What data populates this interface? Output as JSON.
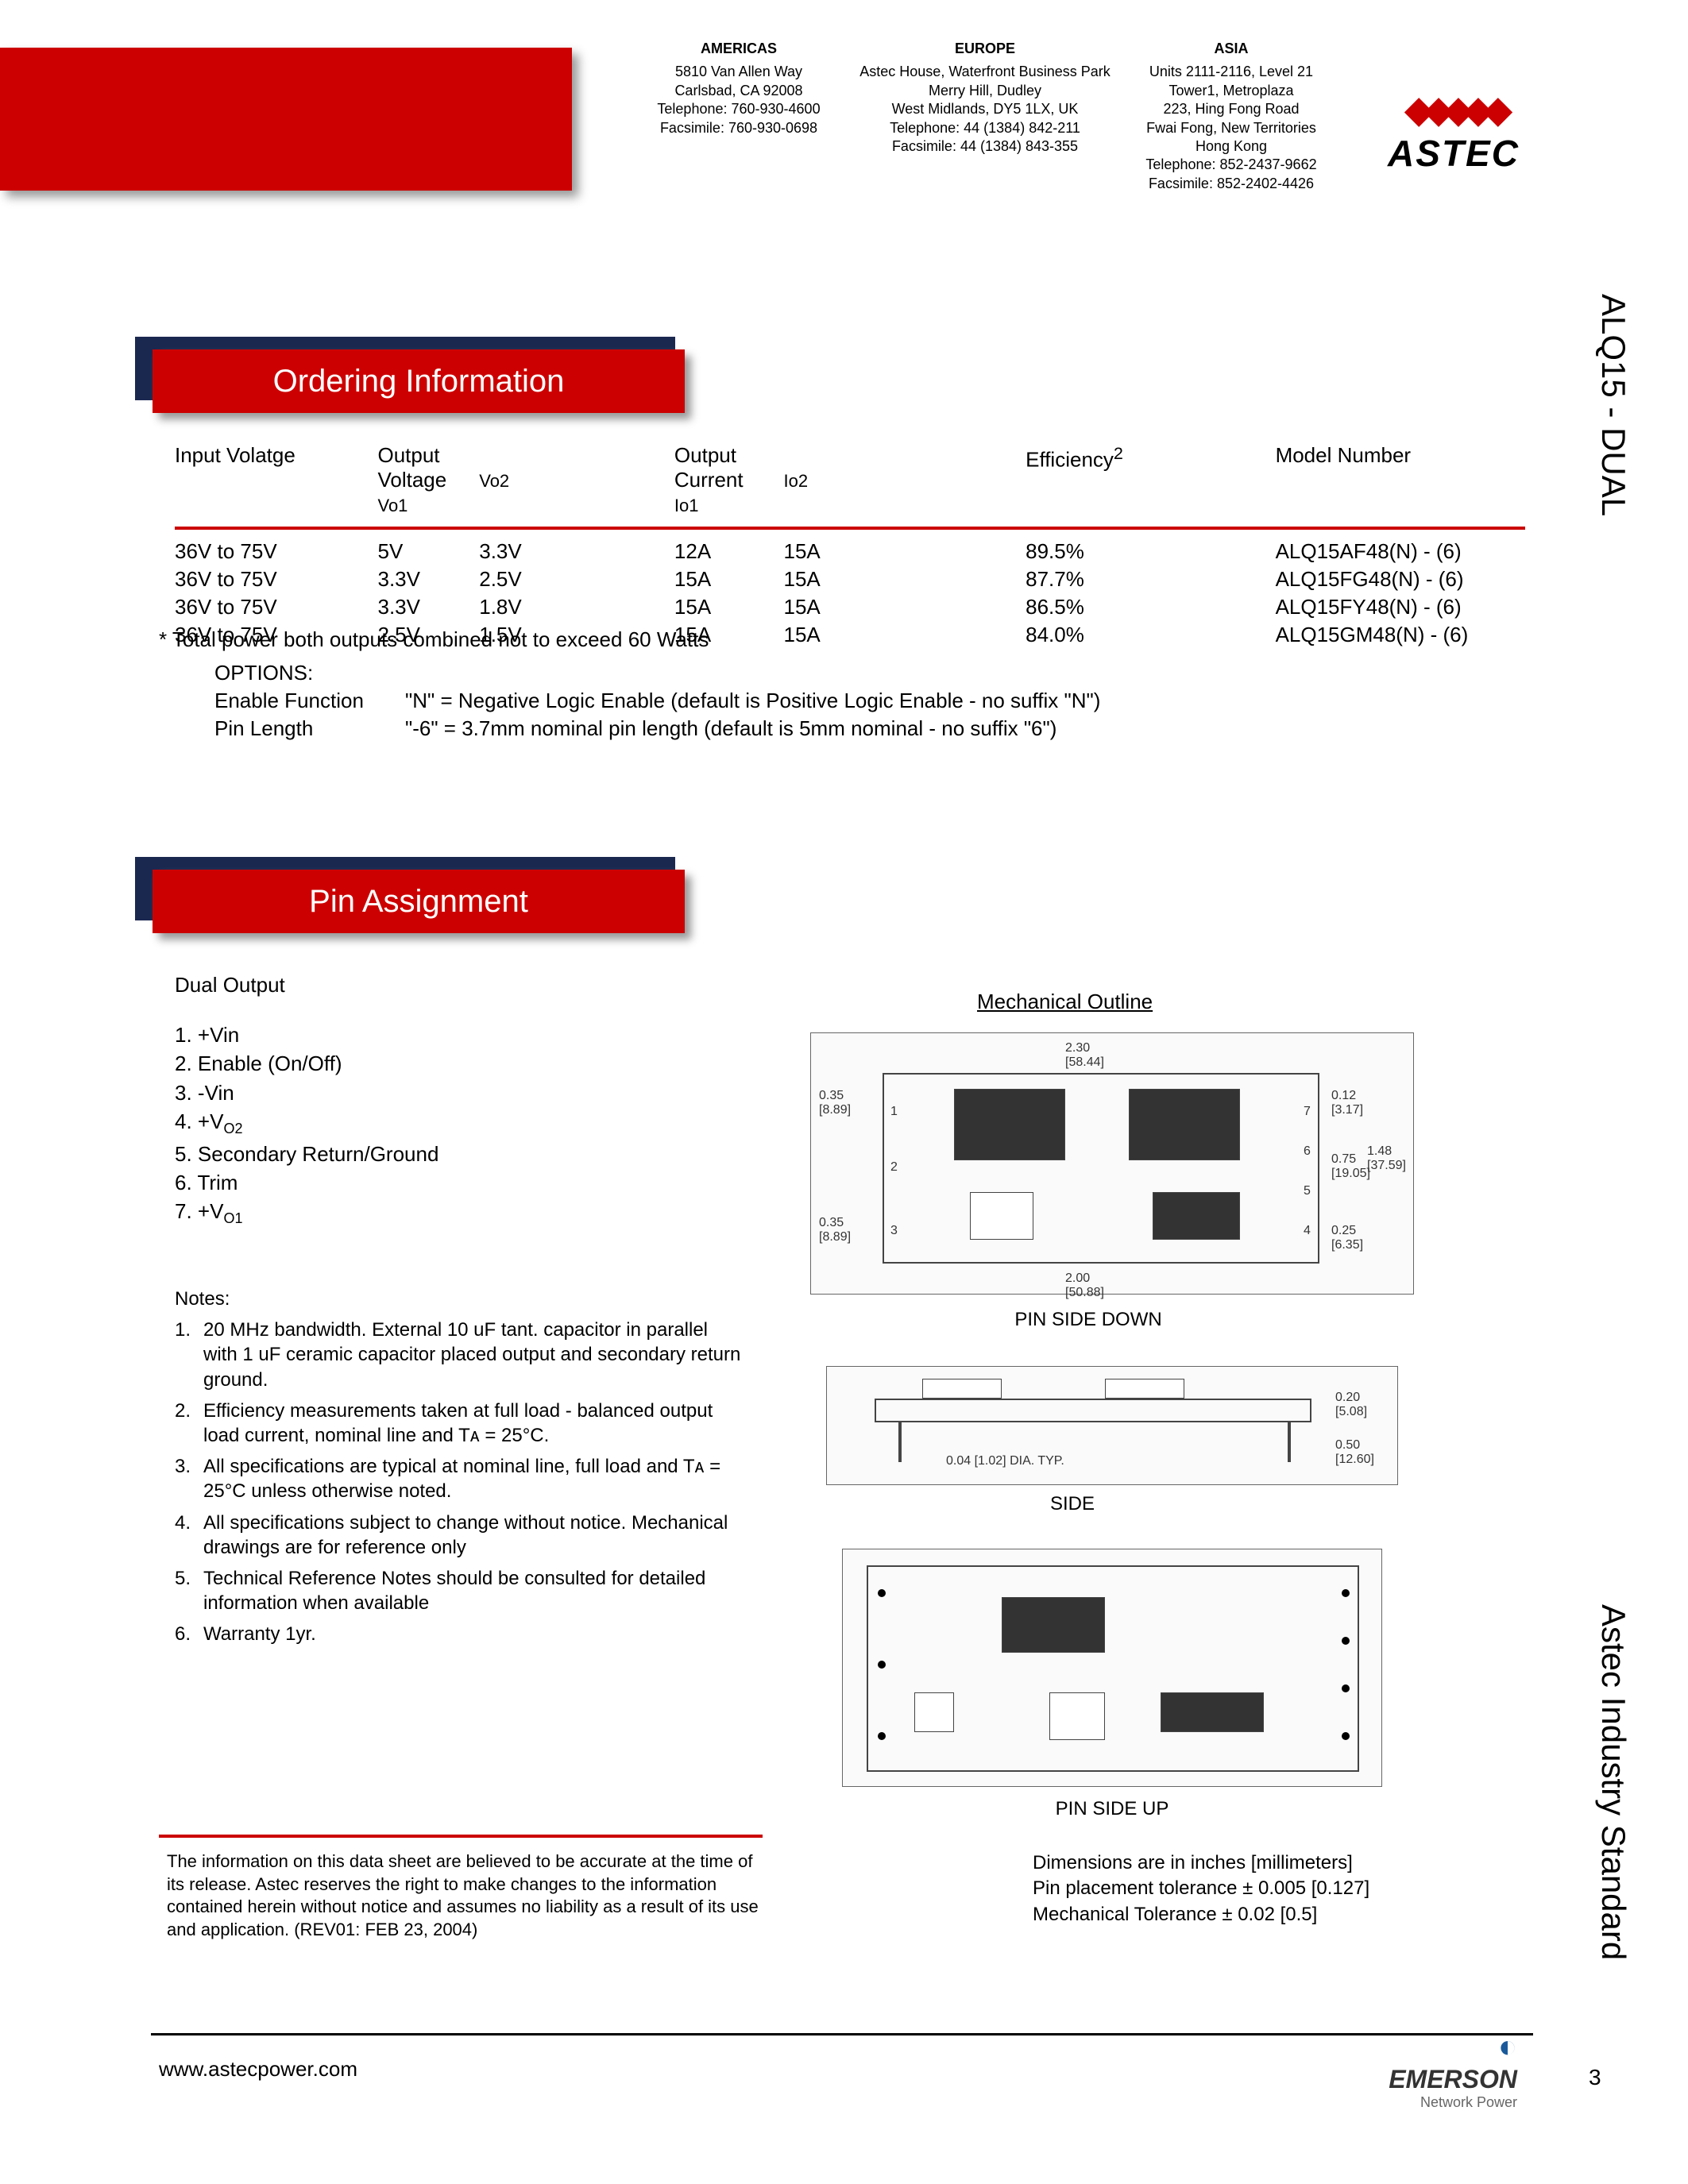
{
  "contacts": {
    "americas": {
      "title": "AMERICAS",
      "l1": "5810 Van Allen Way",
      "l2": "Carlsbad, CA 92008",
      "l3": "Telephone: 760-930-4600",
      "l4": "Facsimile: 760-930-0698"
    },
    "europe": {
      "title": "EUROPE",
      "l1": "Astec House, Waterfront Business Park",
      "l2": "Merry Hill, Dudley",
      "l3": "West Midlands, DY5 1LX, UK",
      "l4": "Telephone: 44 (1384) 842-211",
      "l5": "Facsimile: 44 (1384) 843-355"
    },
    "asia": {
      "title": "ASIA",
      "l1": "Units 2111-2116, Level 21",
      "l2": "Tower1, Metroplaza",
      "l3": "223, Hing Fong Road",
      "l4": "Fwai Fong, New Territories",
      "l5": "Hong Kong",
      "l6": "Telephone: 852-2437-9662",
      "l7": "Facsimile: 852-2402-4426"
    }
  },
  "brand": {
    "astec": "ASTEC",
    "emerson": "EMERSON",
    "emerson_sub": "Network Power"
  },
  "side": {
    "top": "ALQ15 - DUAL",
    "bottom": "Astec Industry Standard"
  },
  "sections": {
    "ordering": "Ordering Information",
    "pin": "Pin Assignment"
  },
  "table": {
    "headers": {
      "input": "Input Volatge",
      "output_voltage": "Output Voltage",
      "vo1": "Vo1",
      "vo2": "Vo2",
      "output_current": "Output Current",
      "io1": "Io1",
      "io2": "Io2",
      "eff": "Efficiency",
      "eff_sup": "2",
      "model": "Model Number"
    },
    "rows": [
      {
        "iv": "36V to 75V",
        "vo1": "5V",
        "vo2": "3.3V",
        "io1": "12A",
        "io2": "15A",
        "eff": "89.5%",
        "model": "ALQ15AF48(N)  - (6)"
      },
      {
        "iv": "36V to 75V",
        "vo1": "3.3V",
        "vo2": "2.5V",
        "io1": "15A",
        "io2": "15A",
        "eff": "87.7%",
        "model": "ALQ15FG48(N) - (6)"
      },
      {
        "iv": "36V to 75V",
        "vo1": "3.3V",
        "vo2": "1.8V",
        "io1": "15A",
        "io2": "15A",
        "eff": "86.5%",
        "model": "ALQ15FY48(N)  - (6)"
      },
      {
        "iv": "36V to 75V",
        "vo1": "2.5V",
        "vo2": "1.5V",
        "io1": "15A",
        "io2": "15A",
        "eff": "84.0%",
        "model": "ALQ15GM48(N) - (6)"
      }
    ],
    "footnote": "* Total power both outputs combined not to exceed 60 Watts"
  },
  "options": {
    "title": "OPTIONS:",
    "r1_label": "Enable Function",
    "r1_text": "\"N\" = Negative Logic Enable (default is Positive Logic Enable - no suffix \"N\")",
    "r2_label": "Pin Length",
    "r2_text": "\"-6\" = 3.7mm nominal pin length (default is 5mm nominal - no suffix \"6\")"
  },
  "pins": {
    "title": "Dual Output",
    "items": [
      "1. +Vin",
      "2. Enable (On/Off)",
      "3. -Vin",
      "4. +V",
      "5. Secondary Return/Ground",
      "6. Trim",
      "7. +V"
    ],
    "sub4": "O2",
    "sub7": "O1"
  },
  "notes": {
    "title": "Notes:",
    "items": [
      "20 MHz bandwidth. External 10 uF tant. capacitor in parallel with 1 uF ceramic capacitor placed output and secondary return ground.",
      "Efficiency measurements taken at full load - balanced output load current, nominal line and Tᴀ = 25°C.",
      "All specifications are typical at nominal line, full load and Tᴀ = 25°C unless otherwise noted.",
      "All specifications subject to change without notice. Mechanical drawings are for reference only",
      "Technical Reference Notes should be consulted for detailed information when available",
      "Warranty 1yr."
    ]
  },
  "mech": {
    "title": "Mechanical Outline",
    "pin_down": "PIN SIDE DOWN",
    "side": "SIDE",
    "pin_up": "PIN SIDE UP",
    "dims": {
      "w": "2.30",
      "w_mm": "[58.44]",
      "h": "1.48",
      "h_mm": "[37.59]",
      "w2": "2.00",
      "w2_mm": "[50.88]",
      "d1": "0.35",
      "d1_mm": "[8.89]",
      "d2": "0.75",
      "d2_mm": "[19.05]",
      "d3": "0.25",
      "d3_mm": "[6.35]",
      "d4": "0.12",
      "d4_mm": "[3.17]",
      "side_h": "0.20",
      "side_h_mm": "[5.08]",
      "side_t": "0.50",
      "side_t_mm": "[12.60]",
      "dia": "0.04 [1.02] DIA. TYP."
    }
  },
  "disclaimer": "The information on this data sheet are believed to be accurate at the time of its release. Astec reserves the right to make changes to the information contained herein without notice and assumes no liability as a result of its use and application. (REV01: FEB 23, 2004)",
  "dimensions_note": {
    "l1": "Dimensions are in inches [millimeters]",
    "l2": "Pin placement tolerance ± 0.005 [0.127]",
    "l3": "Mechanical Tolerance ± 0.02 [0.5]"
  },
  "footer": {
    "url": "www.astecpower.com",
    "page": "3"
  },
  "colors": {
    "red": "#cc0000",
    "navy": "#1a2850",
    "emerson_blue": "#1a5a9a"
  }
}
